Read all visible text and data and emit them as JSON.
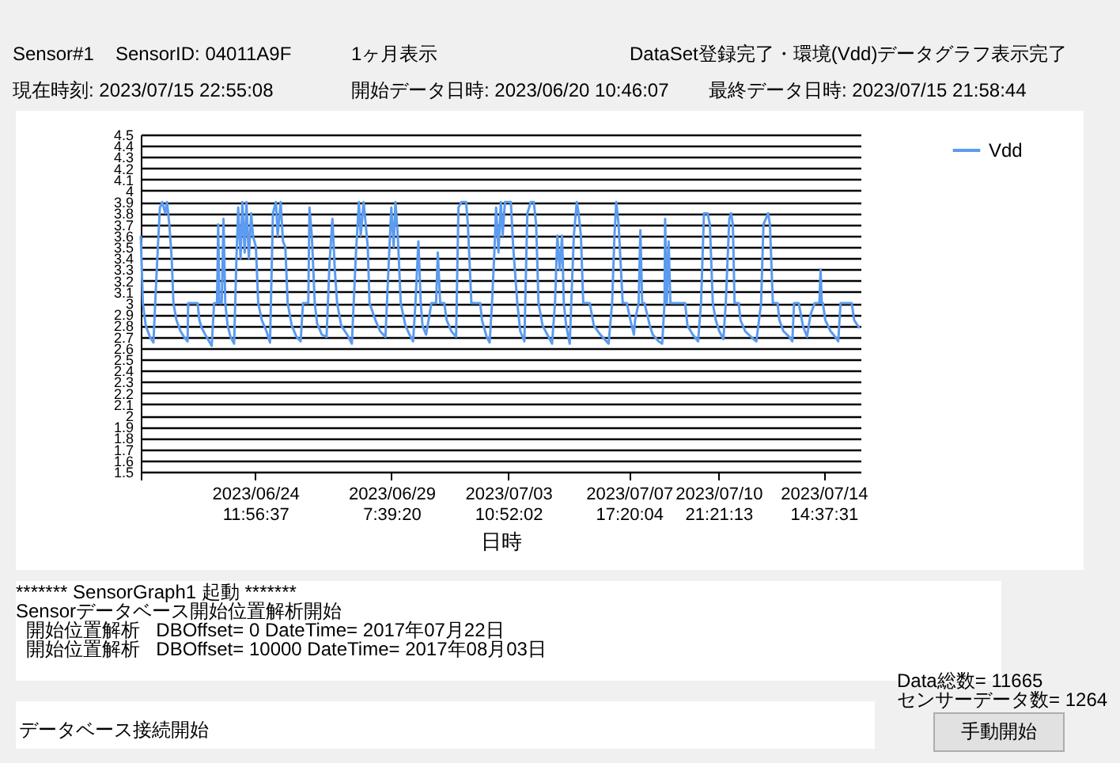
{
  "chart_data": {
    "type": "line",
    "xlabel": "日時",
    "annotations": [
      "Sensor#1",
      "SensorID: 04011A9F",
      "1ヶ月表示",
      "DataSet登録完了・環境(Vdd)データグラフ表示完了",
      "現在時刻: 2023/07/15 22:55:08",
      "開始データ日時: 2023/06/20 10:46:07",
      "最終データ日時: 2023/07/15 21:58:44",
      "******* SensorGraph1 起動 *******",
      "Sensorデータベース開始位置解析開始",
      "  開始位置解析   DBOffset= 0 DateTime= 2017年07月22日",
      "  開始位置解析   DBOffset= 10000 DateTime= 2017年08月03日",
      "データベース接続開始",
      "Data総数= 11665",
      "センサーデータ数= 1264",
      "手動開始"
    ],
    "xlim": [
      "2023-06-20T10:46",
      "2023-07-15T21:58"
    ],
    "xticks": [
      {
        "value": "2023-06-20T10:46",
        "label": null
      },
      {
        "value": "2023-06-24T11:56",
        "label": "2023/06/24 11:56:37"
      },
      {
        "value": "2023-06-29T07:39",
        "label": "2023/06/29 7:39:20"
      },
      {
        "value": "2023-07-03T10:52",
        "label": "2023/07/03 10:52:02"
      },
      {
        "value": "2023-07-07T17:20",
        "label": "2023/07/07 17:20:04"
      },
      {
        "value": "2023-07-10T21:21",
        "label": "2023/07/10 21:21:13"
      },
      {
        "value": "2023-07-14T14:37",
        "label": "2023/07/14 14:37:31"
      }
    ],
    "ylim": [
      1.5,
      4.5
    ],
    "yticks": [
      1.5,
      1.6,
      1.7,
      1.8,
      1.9,
      2,
      2.1,
      2.2,
      2.3,
      2.4,
      2.5,
      2.6,
      2.7,
      2.8,
      2.9,
      3,
      3.1,
      3.2,
      3.3,
      3.4,
      3.5,
      3.6,
      3.7,
      3.8,
      3.9,
      4,
      4.1,
      4.2,
      4.3,
      4.4,
      4.5
    ],
    "grid": "y",
    "legend": "top right",
    "marker": "none",
    "line_style": "solid",
    "series": [
      {
        "name": "Vdd",
        "color": "#5b9bf0",
        "x": [
          "2023-06-20T10:46",
          "2023-06-20T12:30",
          "2023-06-20T15:00",
          "2023-06-20T18:30",
          "2023-06-20T21:30",
          "2023-06-20T23:00",
          "2023-06-21T01:30",
          "2023-06-21T03:00",
          "2023-06-21T05:00",
          "2023-06-21T07:30",
          "2023-06-21T09:00",
          "2023-06-21T11:00",
          "2023-06-21T13:00",
          "2023-06-21T14:30",
          "2023-06-21T17:00",
          "2023-06-21T20:30",
          "2023-06-21T23:30",
          "2023-06-22T02:30",
          "2023-06-22T03:00",
          "2023-06-22T11:00",
          "2023-06-22T12:30",
          "2023-06-22T14:30",
          "2023-06-22T17:30",
          "2023-06-22T23:00",
          "2023-06-23T01:00",
          "2023-06-23T03:30",
          "2023-06-23T04:30",
          "2023-06-23T05:30",
          "2023-06-23T07:30",
          "2023-06-23T09:00",
          "2023-06-23T10:30",
          "2023-06-23T12:30",
          "2023-06-23T15:00",
          "2023-06-23T18:00",
          "2023-06-23T20:00",
          "2023-06-23T21:30",
          "2023-06-23T23:30",
          "2023-06-24T01:00",
          "2023-06-24T03:00",
          "2023-06-24T04:30",
          "2023-06-24T06:30",
          "2023-06-24T08:30",
          "2023-06-24T10:00",
          "2023-06-24T12:30",
          "2023-06-24T14:30",
          "2023-06-24T17:30",
          "2023-06-24T21:30",
          "2023-06-25T00:30",
          "2023-06-25T03:00",
          "2023-06-25T05:30",
          "2023-06-25T07:00",
          "2023-06-25T09:30",
          "2023-06-25T11:30",
          "2023-06-25T13:30",
          "2023-06-25T15:30",
          "2023-06-25T19:00",
          "2023-06-25T23:00",
          "2023-06-26T02:30",
          "2023-06-26T04:30",
          "2023-06-26T09:00",
          "2023-06-26T10:00",
          "2023-06-26T12:00",
          "2023-06-26T14:30",
          "2023-06-26T16:30",
          "2023-06-26T20:30",
          "2023-06-27T00:30",
          "2023-06-27T03:00",
          "2023-06-27T05:30",
          "2023-06-27T07:30",
          "2023-06-27T09:30",
          "2023-06-27T13:00",
          "2023-06-27T18:00",
          "2023-06-27T22:00",
          "2023-06-28T01:30",
          "2023-06-28T04:00",
          "2023-06-28T05:30",
          "2023-06-28T08:00",
          "2023-06-28T11:30",
          "2023-06-28T13:00",
          "2023-06-28T18:00",
          "2023-06-28T22:00",
          "2023-06-29T02:30",
          "2023-06-29T05:30",
          "2023-06-29T07:30",
          "2023-06-29T09:30",
          "2023-06-29T11:00",
          "2023-06-29T13:00",
          "2023-06-29T15:30",
          "2023-06-29T19:30",
          "2023-06-29T23:00",
          "2023-06-30T02:00",
          "2023-06-30T04:00",
          "2023-06-30T06:30",
          "2023-06-30T08:30",
          "2023-06-30T10:00",
          "2023-06-30T13:00",
          "2023-06-30T16:00",
          "2023-06-30T17:30",
          "2023-06-30T21:30",
          "2023-06-30T23:00",
          "2023-07-01T01:00",
          "2023-07-01T04:30",
          "2023-07-01T06:30",
          "2023-07-01T10:30",
          "2023-07-01T14:30",
          "2023-07-01T16:30",
          "2023-07-01T19:00",
          "2023-07-01T23:00",
          "2023-07-02T00:30",
          "2023-07-02T03:30",
          "2023-07-02T08:00",
          "2023-07-02T11:00",
          "2023-07-02T12:30",
          "2023-07-02T16:30",
          "2023-07-02T19:00",
          "2023-07-02T21:00",
          "2023-07-02T23:00",
          "2023-07-03T00:30",
          "2023-07-03T02:30",
          "2023-07-03T04:30",
          "2023-07-03T06:00",
          "2023-07-03T08:00",
          "2023-07-03T13:00",
          "2023-07-03T15:00",
          "2023-07-03T18:30",
          "2023-07-03T21:00",
          "2023-07-04T00:30",
          "2023-07-04T03:00",
          "2023-07-04T06:00",
          "2023-07-04T08:30",
          "2023-07-04T10:30",
          "2023-07-04T12:30",
          "2023-07-04T16:00",
          "2023-07-04T20:00",
          "2023-07-05T00:00",
          "2023-07-05T02:30",
          "2023-07-05T04:30",
          "2023-07-05T06:30",
          "2023-07-05T08:30",
          "2023-07-05T10:00",
          "2023-07-05T12:00",
          "2023-07-05T15:00",
          "2023-07-05T18:30",
          "2023-07-05T21:00",
          "2023-07-05T22:30",
          "2023-07-06T00:30",
          "2023-07-06T02:30",
          "2023-07-06T05:00",
          "2023-07-06T08:00",
          "2023-07-06T11:30",
          "2023-07-06T17:00",
          "2023-07-07T00:00",
          "2023-07-07T03:00",
          "2023-07-07T05:00",
          "2023-07-07T06:30",
          "2023-07-07T08:30",
          "2023-07-07T10:30",
          "2023-07-07T12:00",
          "2023-07-07T15:30",
          "2023-07-07T18:30",
          "2023-07-07T21:30",
          "2023-07-07T22:30",
          "2023-07-08T01:30",
          "2023-07-08T03:00",
          "2023-07-08T04:30",
          "2023-07-08T06:30",
          "2023-07-08T11:00",
          "2023-07-08T13:30",
          "2023-07-08T18:30",
          "2023-07-08T21:30",
          "2023-07-08T23:30",
          "2023-07-09T00:00",
          "2023-07-09T01:30",
          "2023-07-09T03:00",
          "2023-07-09T04:30",
          "2023-07-09T07:30",
          "2023-07-09T12:30",
          "2023-07-09T17:00",
          "2023-07-09T19:00",
          "2023-07-09T23:30",
          "2023-07-10T04:00",
          "2023-07-10T06:30",
          "2023-07-10T09:00",
          "2023-07-10T12:00",
          "2023-07-10T14:00",
          "2023-07-10T16:30",
          "2023-07-10T19:00",
          "2023-07-10T22:00",
          "2023-07-11T01:30",
          "2023-07-11T03:30",
          "2023-07-11T06:30",
          "2023-07-11T08:00",
          "2023-07-11T09:30",
          "2023-07-11T11:00",
          "2023-07-11T14:30",
          "2023-07-11T16:00",
          "2023-07-11T20:00",
          "2023-07-12T01:00",
          "2023-07-12T05:30",
          "2023-07-12T09:30",
          "2023-07-12T11:30",
          "2023-07-12T15:30",
          "2023-07-12T17:00",
          "2023-07-12T19:30",
          "2023-07-12T23:30",
          "2023-07-13T01:00",
          "2023-07-13T04:30",
          "2023-07-13T09:30",
          "2023-07-13T12:00",
          "2023-07-13T13:30",
          "2023-07-13T17:30",
          "2023-07-13T21:00",
          "2023-07-14T00:30",
          "2023-07-14T02:00",
          "2023-07-14T03:30",
          "2023-07-14T07:00",
          "2023-07-14T11:00",
          "2023-07-14T12:00",
          "2023-07-14T13:00",
          "2023-07-14T14:00",
          "2023-07-14T16:00",
          "2023-07-14T20:30",
          "2023-07-15T00:30",
          "2023-07-15T03:00",
          "2023-07-15T05:00",
          "2023-07-15T09:00",
          "2023-07-15T14:30",
          "2023-07-15T16:30",
          "2023-07-15T19:30",
          "2023-07-15T21:00"
        ],
        "values": [
          3.6,
          3.0,
          2.8,
          2.7,
          2.65,
          3.0,
          3.55,
          3.85,
          3.9,
          3.8,
          3.9,
          3.7,
          3.4,
          3.0,
          2.85,
          2.75,
          2.7,
          2.66,
          3.0,
          3.0,
          2.85,
          2.78,
          2.72,
          2.62,
          3.0,
          3.0,
          3.7,
          3.0,
          3.0,
          3.75,
          3.0,
          2.8,
          2.7,
          2.64,
          3.4,
          3.85,
          3.4,
          3.9,
          3.45,
          3.9,
          3.4,
          3.8,
          3.6,
          3.5,
          3.0,
          2.85,
          2.75,
          2.65,
          3.8,
          3.9,
          3.6,
          3.9,
          3.55,
          3.5,
          3.0,
          2.8,
          2.7,
          2.66,
          3.0,
          3.0,
          3.85,
          3.6,
          3.0,
          2.82,
          2.72,
          2.7,
          3.35,
          3.75,
          3.3,
          3.0,
          2.8,
          2.72,
          2.64,
          3.45,
          3.9,
          3.6,
          3.9,
          3.5,
          3.0,
          2.85,
          2.75,
          2.7,
          3.4,
          3.85,
          3.5,
          3.9,
          3.6,
          3.0,
          2.8,
          2.72,
          2.66,
          3.0,
          3.55,
          3.0,
          2.8,
          2.72,
          2.9,
          3.0,
          3.0,
          3.45,
          3.0,
          3.0,
          2.85,
          2.75,
          2.7,
          3.85,
          3.9,
          3.9,
          3.7,
          3.0,
          3.0,
          3.0,
          2.85,
          2.7,
          2.65,
          3.0,
          3.45,
          3.85,
          3.45,
          3.9,
          3.6,
          3.9,
          3.9,
          3.5,
          3.0,
          2.75,
          2.66,
          3.8,
          3.9,
          3.9,
          3.7,
          3.0,
          2.8,
          2.72,
          2.64,
          3.0,
          3.6,
          3.3,
          3.6,
          3.0,
          2.8,
          2.64,
          3.6,
          3.9,
          3.8,
          3.6,
          3.0,
          3.0,
          3.0,
          2.8,
          2.72,
          2.64,
          3.0,
          3.6,
          3.9,
          3.7,
          3.3,
          3.0,
          3.0,
          2.85,
          2.72,
          2.85,
          3.0,
          3.65,
          3.0,
          3.0,
          2.8,
          2.72,
          2.66,
          2.64,
          3.0,
          3.75,
          3.0,
          3.55,
          3.0,
          3.0,
          3.0,
          3.0,
          2.8,
          2.72,
          2.66,
          3.0,
          3.8,
          3.8,
          3.7,
          3.0,
          2.85,
          2.75,
          2.68,
          3.0,
          3.75,
          3.8,
          3.7,
          3.0,
          3.0,
          2.85,
          2.75,
          2.7,
          2.66,
          3.0,
          3.7,
          3.8,
          3.7,
          3.0,
          3.0,
          2.85,
          2.75,
          2.7,
          2.66,
          3.0,
          3.0,
          2.8,
          2.7,
          2.8,
          2.9,
          3.0,
          3.0,
          3.3,
          3.0,
          3.0,
          2.85,
          2.75,
          2.7,
          2.66,
          3.0,
          3.0,
          3.0,
          2.85,
          2.8,
          2.78
        ]
      }
    ]
  }
}
